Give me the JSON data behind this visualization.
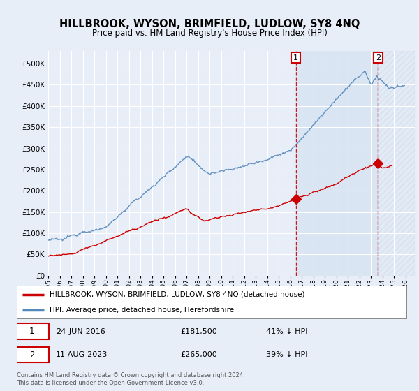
{
  "title": "HILLBROOK, WYSON, BRIMFIELD, LUDLOW, SY8 4NQ",
  "subtitle": "Price paid vs. HM Land Registry's House Price Index (HPI)",
  "ytick_vals": [
    0,
    50000,
    100000,
    150000,
    200000,
    250000,
    300000,
    350000,
    400000,
    450000,
    500000
  ],
  "ylim": [
    0,
    530000
  ],
  "xlim_start": 1995.0,
  "xlim_end": 2026.8,
  "xticks": [
    1995,
    1996,
    1997,
    1998,
    1999,
    2000,
    2001,
    2002,
    2003,
    2004,
    2005,
    2006,
    2007,
    2008,
    2009,
    2010,
    2011,
    2012,
    2013,
    2014,
    2015,
    2016,
    2017,
    2018,
    2019,
    2020,
    2021,
    2022,
    2023,
    2024,
    2025,
    2026
  ],
  "red_line_color": "#cc0000",
  "blue_line_color": "#5588bb",
  "marker1_x": 2016.48,
  "marker1_y": 181500,
  "marker2_x": 2023.61,
  "marker2_y": 265000,
  "vline1_x": 2016.48,
  "vline2_x": 2023.61,
  "legend_red_label": "HILLBROOK, WYSON, BRIMFIELD, LUDLOW, SY8 4NQ (detached house)",
  "legend_blue_label": "HPI: Average price, detached house, Herefordshire",
  "footer": "Contains HM Land Registry data © Crown copyright and database right 2024.\nThis data is licensed under the Open Government Licence v3.0.",
  "bg_color": "#e8eef8",
  "grid_color": "#d8d8d8"
}
